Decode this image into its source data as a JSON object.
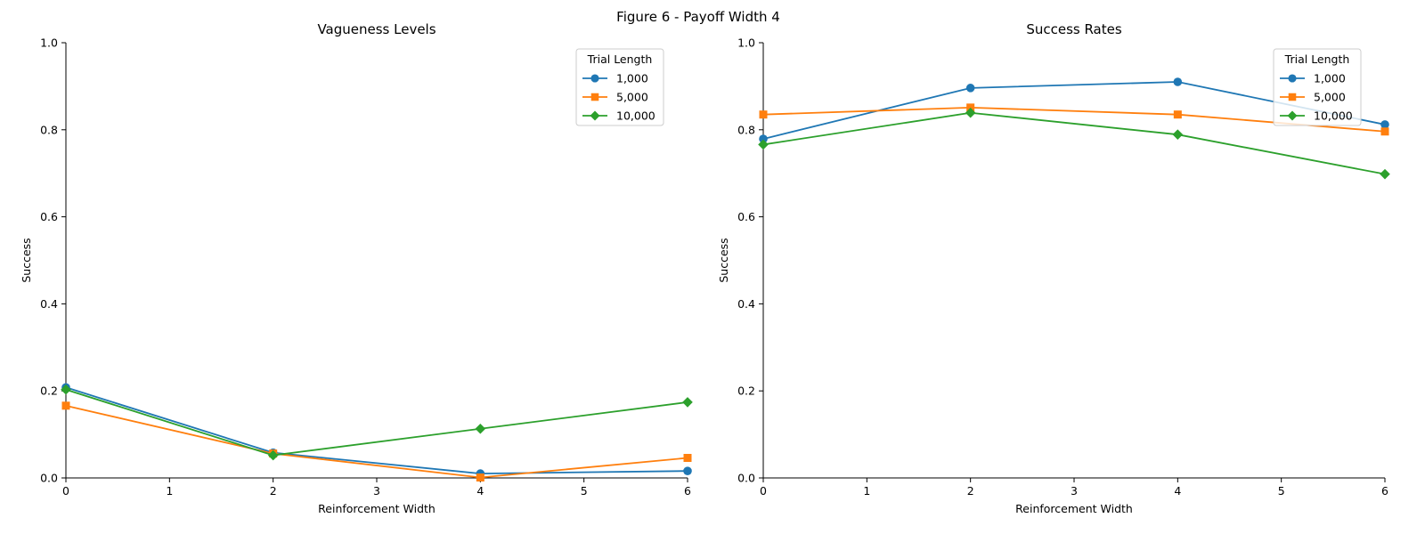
{
  "figure": {
    "suptitle": "Figure 6 - Payoff Width 4"
  },
  "chart_data": [
    {
      "type": "line",
      "title": "Vagueness Levels",
      "xlabel": "Reinforcement Width",
      "ylabel": "Success",
      "xlim": [
        0,
        6
      ],
      "ylim": [
        0,
        1.0
      ],
      "xticks": [
        0,
        1,
        2,
        3,
        4,
        5,
        6
      ],
      "xtick_labels": [
        "0",
        "1",
        "2",
        "3",
        "4",
        "5",
        "6"
      ],
      "yticks": [
        0,
        0.2,
        0.4,
        0.6,
        0.8,
        1.0
      ],
      "ytick_labels": [
        "0.0",
        "0.2",
        "0.4",
        "0.6",
        "0.8",
        "1.0"
      ],
      "grid": false,
      "legend": {
        "title": "Trial Length",
        "position": "top-right"
      },
      "x": [
        0,
        2,
        4,
        6
      ],
      "series": [
        {
          "name": "1,000",
          "color": "#1f77b4",
          "marker": "circle",
          "values": [
            0.208,
            0.058,
            0.01,
            0.016
          ]
        },
        {
          "name": "5,000",
          "color": "#ff7f0e",
          "marker": "square",
          "values": [
            0.166,
            0.056,
            0.001,
            0.046
          ]
        },
        {
          "name": "10,000",
          "color": "#2ca02c",
          "marker": "diamond",
          "values": [
            0.203,
            0.052,
            0.113,
            0.174
          ]
        }
      ]
    },
    {
      "type": "line",
      "title": "Success Rates",
      "xlabel": "Reinforcement Width",
      "ylabel": "Success",
      "xlim": [
        0,
        6
      ],
      "ylim": [
        0,
        1.0
      ],
      "xticks": [
        0,
        1,
        2,
        3,
        4,
        5,
        6
      ],
      "xtick_labels": [
        "0",
        "1",
        "2",
        "3",
        "4",
        "5",
        "6"
      ],
      "yticks": [
        0,
        0.2,
        0.4,
        0.6,
        0.8,
        1.0
      ],
      "ytick_labels": [
        "0.0",
        "0.2",
        "0.4",
        "0.6",
        "0.8",
        "1.0"
      ],
      "grid": false,
      "legend": {
        "title": "Trial Length",
        "position": "top-right"
      },
      "x": [
        0,
        2,
        4,
        6
      ],
      "series": [
        {
          "name": "1,000",
          "color": "#1f77b4",
          "marker": "circle",
          "values": [
            0.779,
            0.896,
            0.91,
            0.812
          ]
        },
        {
          "name": "5,000",
          "color": "#ff7f0e",
          "marker": "square",
          "values": [
            0.835,
            0.851,
            0.835,
            0.796
          ]
        },
        {
          "name": "10,000",
          "color": "#2ca02c",
          "marker": "diamond",
          "values": [
            0.766,
            0.839,
            0.789,
            0.698
          ]
        }
      ]
    }
  ]
}
